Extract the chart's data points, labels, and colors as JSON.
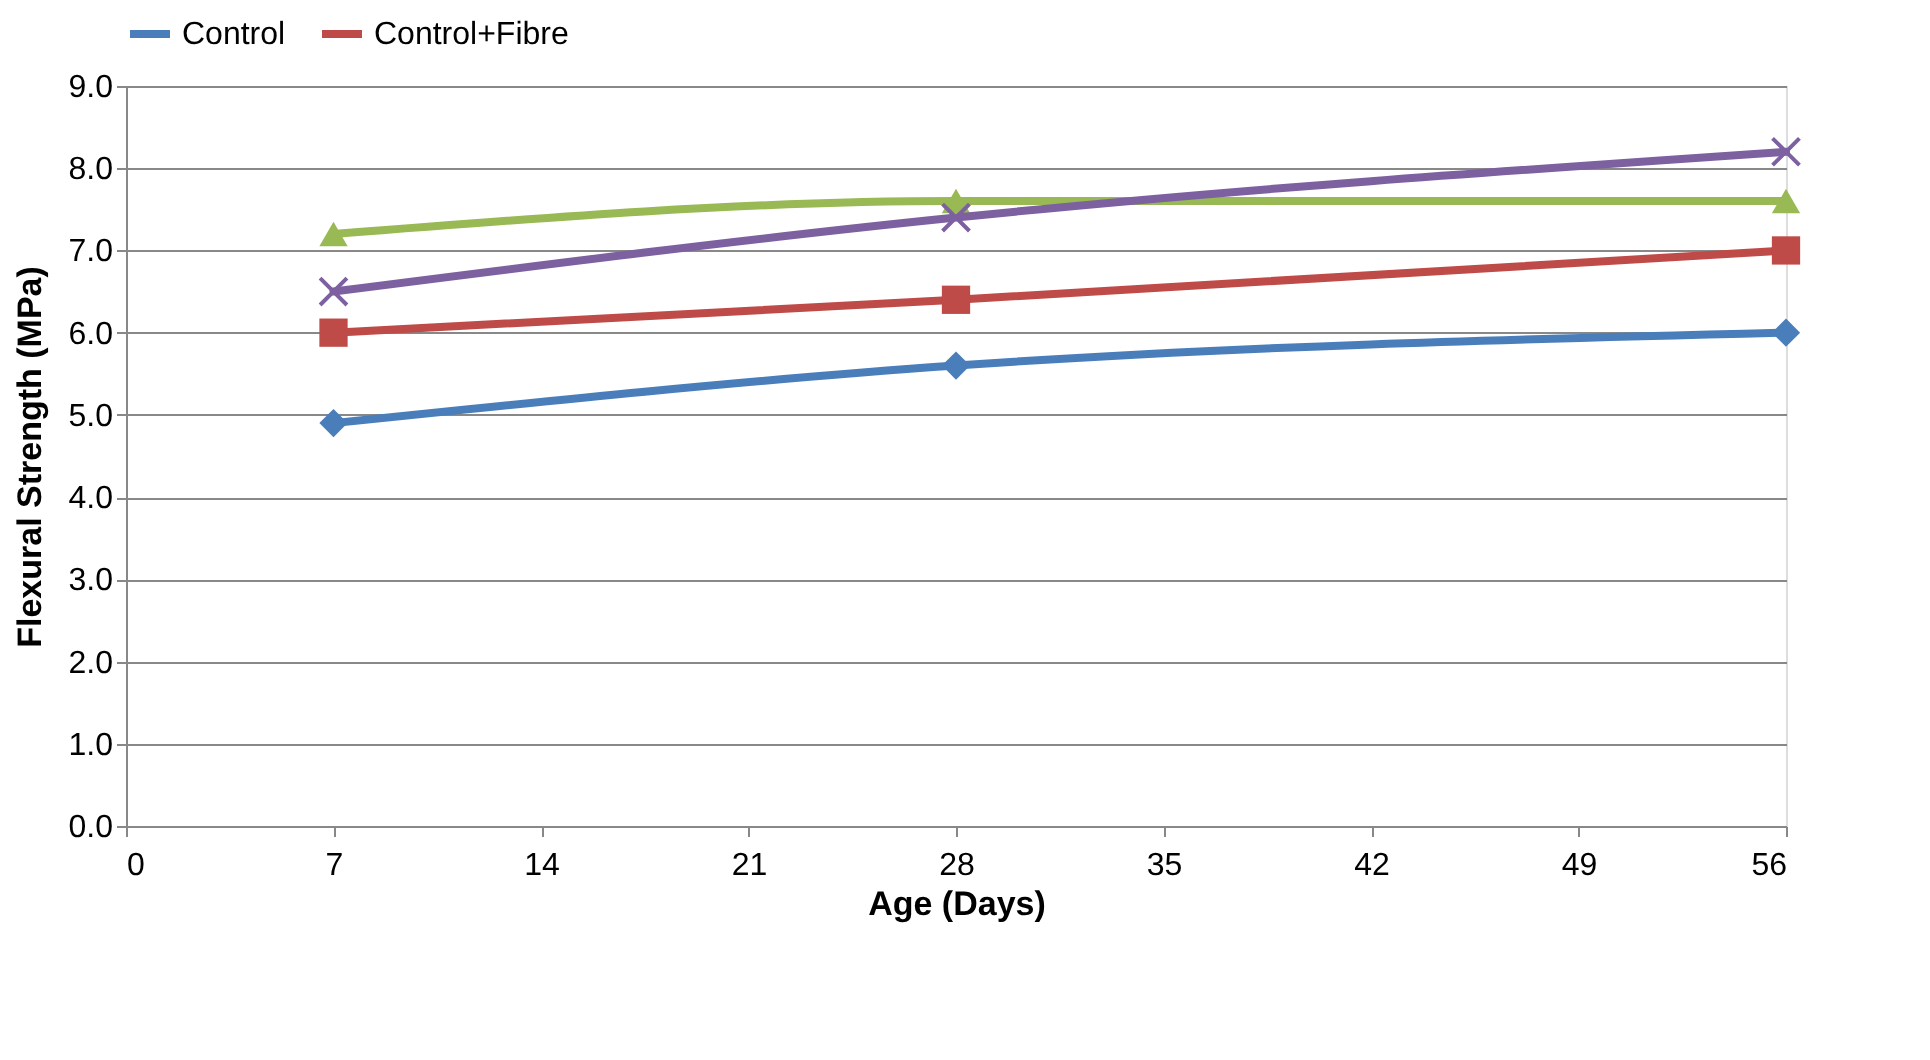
{
  "chart_data": {
    "type": "line",
    "xlabel": "Age (Days)",
    "ylabel": "Flexural Strength (MPa)",
    "x": [
      7,
      28,
      56
    ],
    "series": [
      {
        "name": "Control",
        "color": "#4a7ebb",
        "marker": "diamond",
        "values": [
          4.9,
          5.6,
          6.0
        ]
      },
      {
        "name": "Control+Fibre",
        "color": "#be4b48",
        "marker": "square",
        "values": [
          6.0,
          6.4,
          7.0
        ]
      },
      {
        "color": "#98b954",
        "marker": "triangle",
        "values": [
          7.2,
          7.6,
          7.6
        ]
      },
      {
        "color": "#7d60a0",
        "marker": "cross",
        "values": [
          6.5,
          7.4,
          8.2
        ]
      }
    ],
    "xlim": [
      0,
      56
    ],
    "xticks": [
      0,
      7,
      14,
      21,
      28,
      35,
      42,
      49,
      56
    ],
    "ylim": [
      0,
      9
    ],
    "yticks": [
      {
        "value": 0,
        "label": "0.0"
      },
      {
        "value": 1,
        "label": "1.0"
      },
      {
        "value": 2,
        "label": "2.0"
      },
      {
        "value": 3,
        "label": "3.0"
      },
      {
        "value": 4,
        "label": "4.0"
      },
      {
        "value": 5,
        "label": "5.0"
      },
      {
        "value": 6,
        "label": "6.0"
      },
      {
        "value": 7,
        "label": "7.0"
      },
      {
        "value": 8,
        "label": "8.0"
      },
      {
        "value": 9,
        "label": "9.0"
      }
    ],
    "grid": "y",
    "legend": "top",
    "line_style": "solid"
  }
}
